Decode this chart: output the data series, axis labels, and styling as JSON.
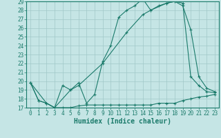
{
  "xlabel": "Humidex (Indice chaleur)",
  "bg_color": "#c5e5e5",
  "line_color": "#1a7a6a",
  "grid_color": "#a0c8c8",
  "ylim": [
    17,
    29
  ],
  "xlim": [
    -0.5,
    23.5
  ],
  "yticks": [
    17,
    18,
    19,
    20,
    21,
    22,
    23,
    24,
    25,
    26,
    27,
    28,
    29
  ],
  "xticks": [
    0,
    1,
    2,
    3,
    4,
    5,
    6,
    7,
    8,
    9,
    10,
    11,
    12,
    13,
    14,
    15,
    16,
    17,
    18,
    19,
    20,
    21,
    22,
    23
  ],
  "line1_x": [
    0,
    1,
    2,
    3,
    4,
    5,
    6,
    7,
    8,
    9,
    10,
    11,
    12,
    13,
    14,
    15,
    16,
    17,
    18,
    19,
    20,
    21,
    22,
    23
  ],
  "line1_y": [
    19.8,
    17.8,
    17.5,
    17.0,
    19.5,
    19.0,
    19.8,
    17.5,
    18.5,
    22.2,
    24.0,
    27.2,
    28.0,
    28.5,
    29.3,
    28.0,
    28.5,
    28.8,
    29.0,
    28.8,
    20.5,
    19.5,
    18.8,
    18.7
  ],
  "line2_x": [
    0,
    2,
    3,
    5,
    6,
    9,
    12,
    14,
    15,
    17,
    18,
    19,
    20,
    21,
    22,
    23
  ],
  "line2_y": [
    19.8,
    17.5,
    17.0,
    19.0,
    19.5,
    22.0,
    25.5,
    27.5,
    28.0,
    28.8,
    29.0,
    28.5,
    25.8,
    20.5,
    19.2,
    18.8
  ],
  "line3_x": [
    0,
    1,
    2,
    3,
    4,
    5,
    6,
    7,
    8,
    9,
    10,
    11,
    12,
    13,
    14,
    15,
    16,
    17,
    18,
    19,
    20,
    21,
    22,
    23
  ],
  "line3_y": [
    19.8,
    17.8,
    17.5,
    17.0,
    17.0,
    17.0,
    17.2,
    17.3,
    17.3,
    17.3,
    17.3,
    17.3,
    17.3,
    17.3,
    17.3,
    17.3,
    17.5,
    17.5,
    17.5,
    17.8,
    18.0,
    18.2,
    18.3,
    18.5
  ],
  "tick_fontsize": 5.5,
  "label_fontsize": 7
}
